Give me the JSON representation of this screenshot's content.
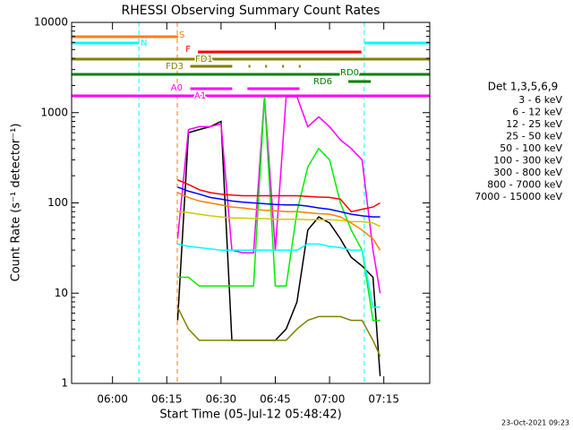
{
  "chart_data": {
    "type": "line",
    "title": "RHESSI Observing Summary Count Rates",
    "x_label": "Start Time (05-Jul-12 05:48:42)",
    "y_label": "Count Rate (s⁻¹ detector⁻¹)",
    "legend_title": "Det 1,3,5,6,9",
    "footer": "23-Oct-2021 09:23",
    "log_y": true,
    "xlim": [
      348.7,
      447.7
    ],
    "xticks": [
      {
        "value": 360,
        "label": "06:00"
      },
      {
        "value": 375,
        "label": "06:15"
      },
      {
        "value": 390,
        "label": "06:30"
      },
      {
        "value": 405,
        "label": "06:45"
      },
      {
        "value": 420,
        "label": "07:00"
      },
      {
        "value": 435,
        "label": "07:15"
      }
    ],
    "ylim": [
      1,
      10000
    ],
    "yticks": [
      1,
      10,
      100,
      1000,
      10000
    ],
    "x": [
      378,
      381,
      384,
      387,
      390,
      393,
      396,
      399,
      402,
      405,
      408,
      411,
      414,
      417,
      420,
      423,
      426,
      429,
      432,
      434
    ],
    "series": [
      {
        "name": "3 - 6 keV",
        "color": "#000000",
        "values": [
          5,
          600,
          650,
          700,
          800,
          3,
          3,
          3,
          3,
          3,
          4,
          8,
          50,
          70,
          60,
          40,
          25,
          20,
          15,
          1.2
        ]
      },
      {
        "name": "6 - 12 keV",
        "color": "#ff00ff",
        "values": [
          40,
          650,
          700,
          700,
          750,
          30,
          28,
          28,
          1500,
          30,
          1500,
          1500,
          700,
          900,
          700,
          500,
          400,
          300,
          30,
          10
        ]
      },
      {
        "name": "12 - 25 keV",
        "color": "#00ee00",
        "values": [
          15,
          15,
          12,
          12,
          12,
          12,
          12,
          12,
          1500,
          12,
          12,
          80,
          250,
          400,
          300,
          100,
          50,
          30,
          5,
          5
        ]
      },
      {
        "name": "25 - 50 keV",
        "color": "#00ffff",
        "values": [
          35,
          33,
          32,
          31,
          30,
          30,
          30,
          30,
          30,
          30,
          30,
          30,
          35,
          35,
          33,
          32,
          30,
          30,
          7,
          7
        ]
      },
      {
        "name": "50 - 100 keV",
        "color": "#cccc00",
        "values": [
          80,
          78,
          75,
          72,
          70,
          68,
          68,
          67,
          67,
          66,
          66,
          66,
          65,
          65,
          65,
          64,
          62,
          62,
          60,
          55
        ]
      },
      {
        "name": "100 - 300 keV",
        "color": "#ff0000",
        "values": [
          180,
          160,
          140,
          130,
          125,
          122,
          120,
          120,
          120,
          120,
          120,
          120,
          118,
          116,
          115,
          110,
          80,
          85,
          90,
          100
        ]
      },
      {
        "name": "300 - 800 keV",
        "color": "#0000ff",
        "values": [
          150,
          135,
          125,
          115,
          110,
          105,
          102,
          100,
          98,
          96,
          95,
          95,
          92,
          88,
          85,
          80,
          75,
          72,
          70,
          70
        ]
      },
      {
        "name": "800 - 7000 keV",
        "color": "#ff8000",
        "values": [
          130,
          115,
          105,
          100,
          95,
          90,
          88,
          85,
          83,
          82,
          80,
          80,
          78,
          76,
          75,
          70,
          60,
          50,
          40,
          30
        ]
      },
      {
        "name": "7000 - 15000 keV",
        "color": "#808000",
        "values": [
          7,
          4,
          3,
          3,
          3,
          3,
          3,
          3,
          3,
          3,
          3,
          4,
          5,
          5.5,
          5.5,
          5.5,
          5,
          5,
          3,
          2
        ]
      }
    ],
    "flags": [
      {
        "label": "S",
        "color": "#ff8000",
        "spans": [
          [
            348.7,
            378.4
          ]
        ]
      },
      {
        "label": "N",
        "color": "#00ffff",
        "spans": [
          [
            348.7,
            367.3
          ],
          [
            429.6,
            447.7
          ]
        ]
      },
      {
        "label": "F",
        "color": "#ff0000",
        "spans": [
          [
            383.6,
            428.8
          ]
        ]
      },
      {
        "label": "FD1",
        "color": "#808000",
        "spans": [
          [
            348.7,
            447.7
          ]
        ]
      },
      {
        "label": "FD3",
        "color": "#808000",
        "spans": [
          [
            381.5,
            393.1
          ],
          [
            397.6,
            398.1
          ],
          [
            402.2,
            402.7
          ],
          [
            406.9,
            407.4
          ],
          [
            411.5,
            412.0
          ]
        ]
      },
      {
        "label": "RD0",
        "color": "#008000",
        "spans": [
          [
            348.7,
            447.7
          ]
        ]
      },
      {
        "label": "RD6",
        "color": "#008000",
        "spans": [
          [
            425.2,
            431.4
          ]
        ]
      },
      {
        "label": "A0",
        "color": "#ff00ff",
        "spans": [
          [
            381.5,
            393.1
          ],
          [
            397.3,
            411.7
          ]
        ]
      },
      {
        "label": "A1",
        "color": "#ff00ff",
        "spans": [
          [
            348.7,
            447.7
          ]
        ]
      }
    ],
    "markers": [
      {
        "x": 348.7,
        "color": "#00ffff"
      },
      {
        "x": 367.3,
        "color": "#00ffff"
      },
      {
        "x": 377.9,
        "color": "#ff8000"
      },
      {
        "x": 429.6,
        "color": "#00ffff"
      },
      {
        "x": 447.7,
        "color": "#00ffff"
      }
    ]
  }
}
